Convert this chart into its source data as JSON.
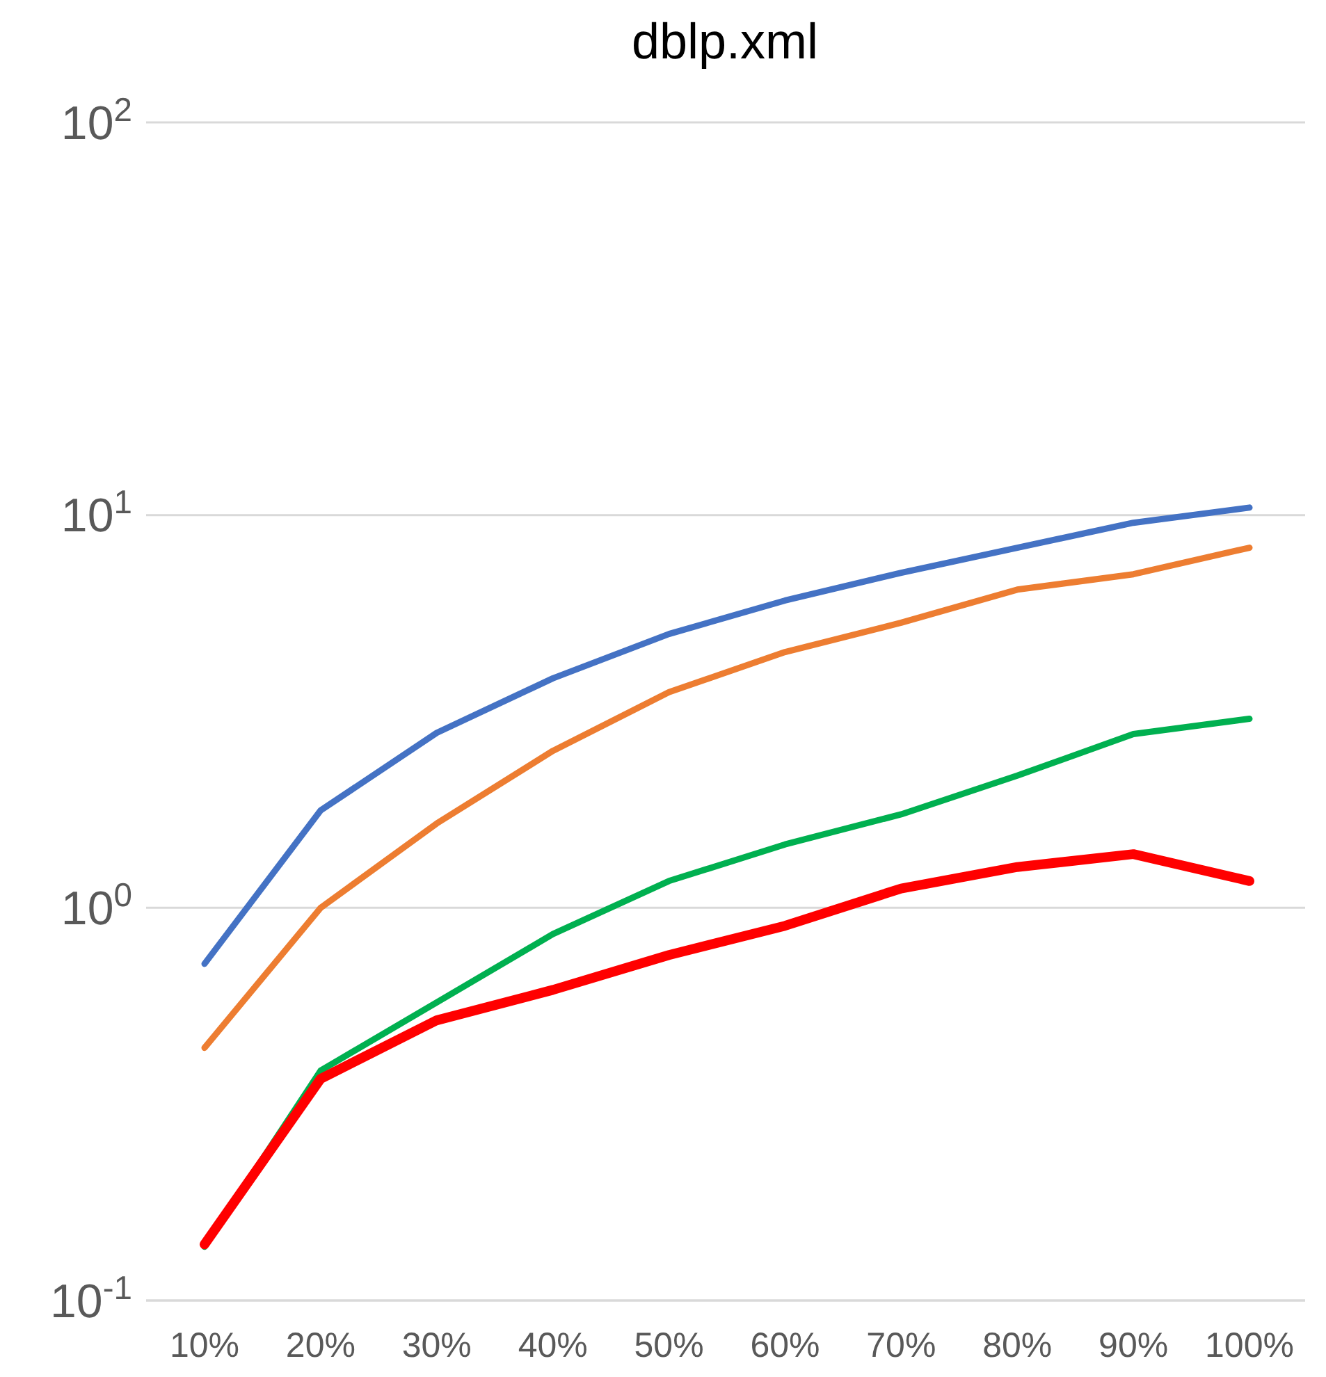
{
  "chart_data": {
    "type": "line",
    "title": "dblp.xml",
    "categories": [
      "10%",
      "20%",
      "30%",
      "40%",
      "50%",
      "60%",
      "70%",
      "80%",
      "90%",
      "100%"
    ],
    "log": "y",
    "ylim": [
      0.1,
      100
    ],
    "yticks": [
      {
        "value": 0.1,
        "label": "10$^{-1}$"
      },
      {
        "value": 1,
        "label": "10$^{0}$"
      },
      {
        "value": 10,
        "label": "10$^{1}$"
      },
      {
        "value": 100,
        "label": "10$^{2}$"
      }
    ],
    "grid": "y",
    "marker": "none",
    "line_style": "solid",
    "series": [
      {
        "color": "#4472c4",
        "values": [
          0.72,
          1.77,
          2.79,
          3.84,
          4.98,
          6.06,
          7.13,
          8.26,
          9.56,
          10.45
        ]
      },
      {
        "color": "#ed7d31",
        "values": [
          0.44,
          1.0,
          1.64,
          2.51,
          3.54,
          4.48,
          5.32,
          6.46,
          7.07,
          8.26
        ]
      },
      {
        "color": "#00b050",
        "values": [
          0.137,
          0.385,
          0.574,
          0.857,
          1.17,
          1.45,
          1.73,
          2.17,
          2.77,
          3.03
        ]
      },
      {
        "color": "#ff0000",
        "values": [
          0.139,
          0.367,
          0.517,
          0.618,
          0.758,
          0.9,
          1.12,
          1.27,
          1.37,
          1.17
        ]
      }
    ]
  }
}
